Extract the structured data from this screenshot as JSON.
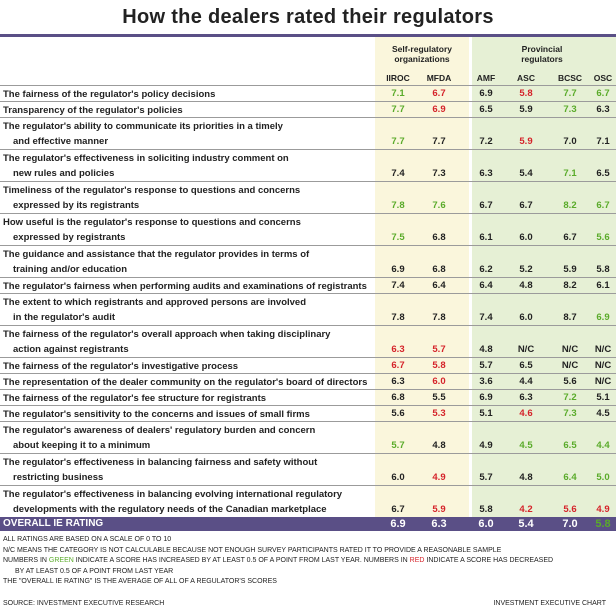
{
  "title": "How the dealers rated their regulators",
  "colors": {
    "green": "#5aab2a",
    "red": "#d5232a",
    "black": "#222222",
    "header_purple": "#5a4f86"
  },
  "groups": {
    "sro": "Self-regulatory organizations",
    "provincial": "Provincial regulators"
  },
  "columns": [
    "IIROC",
    "MFDA",
    "AMF",
    "ASC",
    "BCSC",
    "OSC"
  ],
  "rows": [
    {
      "label": [
        "The fairness of the regulator's policy decisions"
      ],
      "values": [
        [
          "7.1",
          "green"
        ],
        [
          "6.7",
          "red"
        ],
        [
          "6.9",
          "black"
        ],
        [
          "5.8",
          "red"
        ],
        [
          "7.7",
          "green"
        ],
        [
          "6.7",
          "green"
        ]
      ]
    },
    {
      "label": [
        "Transparency of the regulator's policies"
      ],
      "values": [
        [
          "7.7",
          "green"
        ],
        [
          "6.9",
          "red"
        ],
        [
          "6.5",
          "black"
        ],
        [
          "5.9",
          "black"
        ],
        [
          "7.3",
          "green"
        ],
        [
          "6.3",
          "black"
        ]
      ]
    },
    {
      "label": [
        "The regulator's ability to communicate its priorities in a timely",
        "and effective manner"
      ],
      "values": [
        [
          "7.7",
          "green"
        ],
        [
          "7.7",
          "black"
        ],
        [
          "7.2",
          "black"
        ],
        [
          "5.9",
          "red"
        ],
        [
          "7.0",
          "black"
        ],
        [
          "7.1",
          "black"
        ]
      ]
    },
    {
      "label": [
        "The regulator's effectiveness in soliciting industry comment on",
        "new rules and policies"
      ],
      "values": [
        [
          "7.4",
          "black"
        ],
        [
          "7.3",
          "black"
        ],
        [
          "6.3",
          "black"
        ],
        [
          "5.4",
          "black"
        ],
        [
          "7.1",
          "green"
        ],
        [
          "6.5",
          "black"
        ]
      ]
    },
    {
      "label": [
        "Timeliness of the regulator's response to questions and concerns",
        "expressed by its registrants"
      ],
      "values": [
        [
          "7.8",
          "green"
        ],
        [
          "7.6",
          "green"
        ],
        [
          "6.7",
          "black"
        ],
        [
          "6.7",
          "black"
        ],
        [
          "8.2",
          "green"
        ],
        [
          "6.7",
          "green"
        ]
      ]
    },
    {
      "label": [
        "How useful is the regulator's response to questions and concerns",
        "expressed by registrants"
      ],
      "values": [
        [
          "7.5",
          "green"
        ],
        [
          "6.8",
          "black"
        ],
        [
          "6.1",
          "black"
        ],
        [
          "6.0",
          "black"
        ],
        [
          "6.7",
          "black"
        ],
        [
          "5.6",
          "green"
        ]
      ]
    },
    {
      "label": [
        "The guidance and assistance that the regulator provides in terms of",
        "training and/or education"
      ],
      "values": [
        [
          "6.9",
          "black"
        ],
        [
          "6.8",
          "black"
        ],
        [
          "6.2",
          "black"
        ],
        [
          "5.2",
          "black"
        ],
        [
          "5.9",
          "black"
        ],
        [
          "5.8",
          "black"
        ]
      ]
    },
    {
      "label": [
        "The regulator's fairness when performing audits and examinations of registrants"
      ],
      "values": [
        [
          "7.4",
          "black"
        ],
        [
          "6.4",
          "black"
        ],
        [
          "6.4",
          "black"
        ],
        [
          "4.8",
          "black"
        ],
        [
          "8.2",
          "black"
        ],
        [
          "6.1",
          "black"
        ]
      ]
    },
    {
      "label": [
        "The extent to which registrants and approved persons are involved",
        "in the regulator's audit"
      ],
      "values": [
        [
          "7.8",
          "black"
        ],
        [
          "7.8",
          "black"
        ],
        [
          "7.4",
          "black"
        ],
        [
          "6.0",
          "black"
        ],
        [
          "8.7",
          "black"
        ],
        [
          "6.9",
          "green"
        ]
      ]
    },
    {
      "label": [
        "The fairness of the regulator's overall approach when taking disciplinary",
        "action against registrants"
      ],
      "values": [
        [
          "6.3",
          "red"
        ],
        [
          "5.7",
          "red"
        ],
        [
          "4.8",
          "black"
        ],
        [
          "N/C",
          "black"
        ],
        [
          "N/C",
          "black"
        ],
        [
          "N/C",
          "black"
        ]
      ]
    },
    {
      "label": [
        "The fairness of the regulator's investigative process"
      ],
      "values": [
        [
          "6.7",
          "red"
        ],
        [
          "5.8",
          "red"
        ],
        [
          "5.7",
          "black"
        ],
        [
          "6.5",
          "black"
        ],
        [
          "N/C",
          "black"
        ],
        [
          "N/C",
          "black"
        ]
      ]
    },
    {
      "label": [
        "The representation of the dealer community on the regulator's board of directors"
      ],
      "values": [
        [
          "6.3",
          "black"
        ],
        [
          "6.0",
          "red"
        ],
        [
          "3.6",
          "black"
        ],
        [
          "4.4",
          "black"
        ],
        [
          "5.6",
          "black"
        ],
        [
          "N/C",
          "black"
        ]
      ]
    },
    {
      "label": [
        "The fairness of the regulator's fee structure for registrants"
      ],
      "values": [
        [
          "6.8",
          "black"
        ],
        [
          "5.5",
          "black"
        ],
        [
          "6.9",
          "black"
        ],
        [
          "6.3",
          "black"
        ],
        [
          "7.2",
          "green"
        ],
        [
          "5.1",
          "black"
        ]
      ]
    },
    {
      "label": [
        "The regulator's sensitivity to the concerns and issues of small firms"
      ],
      "values": [
        [
          "5.6",
          "black"
        ],
        [
          "5.3",
          "red"
        ],
        [
          "5.1",
          "black"
        ],
        [
          "4.6",
          "red"
        ],
        [
          "7.3",
          "green"
        ],
        [
          "4.5",
          "black"
        ]
      ]
    },
    {
      "label": [
        "The regulator's awareness of dealers' regulatory burden and concern",
        "about keeping it to a minimum"
      ],
      "values": [
        [
          "5.7",
          "green"
        ],
        [
          "4.8",
          "black"
        ],
        [
          "4.9",
          "black"
        ],
        [
          "4.5",
          "green"
        ],
        [
          "6.5",
          "green"
        ],
        [
          "4.4",
          "green"
        ]
      ]
    },
    {
      "label": [
        "The regulator's effectiveness in balancing fairness and safety without",
        "restricting business"
      ],
      "values": [
        [
          "6.0",
          "black"
        ],
        [
          "4.9",
          "red"
        ],
        [
          "5.7",
          "black"
        ],
        [
          "4.8",
          "black"
        ],
        [
          "6.4",
          "green"
        ],
        [
          "5.0",
          "green"
        ]
      ]
    },
    {
      "label": [
        "The regulator's effectiveness in balancing evolving international regulatory",
        "developments with the regulatory needs of the Canadian marketplace"
      ],
      "values": [
        [
          "6.7",
          "black"
        ],
        [
          "5.9",
          "red"
        ],
        [
          "5.8",
          "black"
        ],
        [
          "4.2",
          "red"
        ],
        [
          "5.6",
          "red"
        ],
        [
          "4.9",
          "red"
        ]
      ]
    }
  ],
  "overall": {
    "label": "OVERALL IE RATING",
    "values": [
      [
        "6.9",
        "white"
      ],
      [
        "6.3",
        "white"
      ],
      [
        "6.0",
        "white"
      ],
      [
        "5.4",
        "white"
      ],
      [
        "7.0",
        "white"
      ],
      [
        "5.8",
        "green"
      ]
    ]
  },
  "notes": {
    "line1": "All ratings are based on a scale of 0 to 10",
    "line2": "N/C means the category is not calculable because not enough survey participants rated it to provide a reasonable sample",
    "line3a": "Numbers in ",
    "line3b": "green",
    "line3c": " indicate a score has increased by at least 0.5 of a point from last year. Numbers in ",
    "line3d": "red",
    "line3e": " indicate a score has decreased",
    "line4": "by at least 0.5 of a point from last year",
    "line5": "The \"overall IE rating\" is the average of all of a regulator's scores",
    "source": "Source: Investment Executive research",
    "credit": "Investment Executive chart"
  }
}
